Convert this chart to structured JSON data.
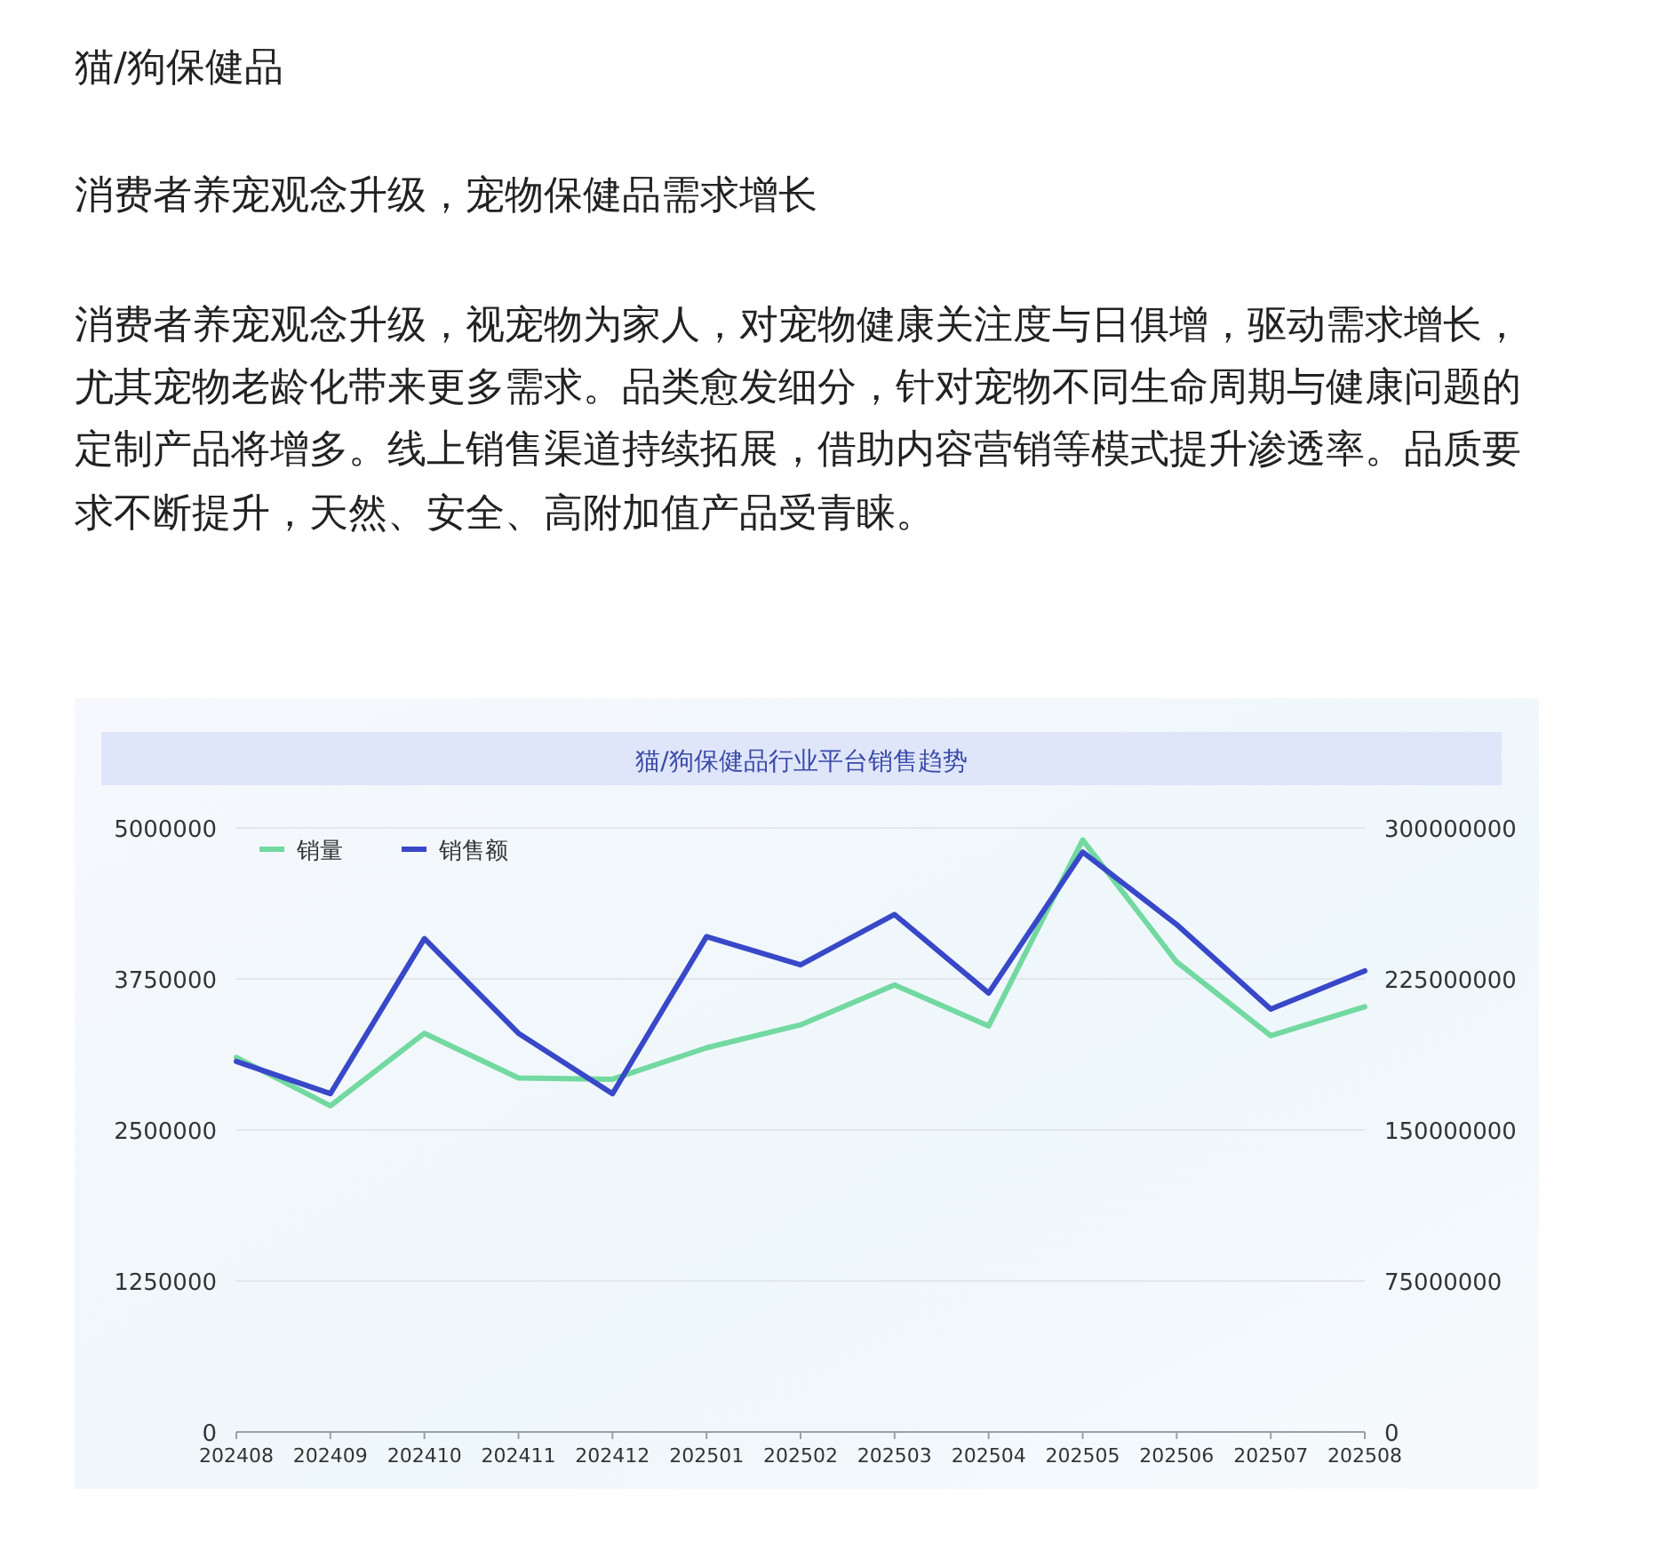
{
  "chart_data": {
    "type": "line",
    "title": "猫/狗保健品",
    "subtitle": "消费者养宠观念升级，宠物保健品需求增长",
    "annotations": [
      "消费者养宠观念升级，视宠物为家人，对宠物健康关注度与日俱增，驱动需求增长，尤其宠物老龄化带来更多需求。品类愈发细分，针对宠物不同生命周期与健康问题的定制产品将增多。线上销售渠道持续拓展，借助内容营销等模式提升渗透率。品质要求不断提升，天然、安全、高附加值产品受青睐。",
      "猫/狗保健品行业平台销售趋势"
    ],
    "categories": [
      "202408",
      "202409",
      "202410",
      "202411",
      "202412",
      "202501",
      "202502",
      "202503",
      "202504",
      "202505",
      "202506",
      "202507",
      "202508"
    ],
    "series": [
      {
        "name": "销量",
        "color": "#72d9a0",
        "values": [
          3100000,
          2700000,
          3300000,
          2930000,
          2920000,
          3180000,
          3370000,
          3700000,
          3360000,
          4900000,
          3890000,
          3280000,
          3520000
        ]
      },
      {
        "name": "销售额",
        "color": "#3848c8",
        "axis": "y2",
        "values": [
          184000000,
          168000000,
          245000000,
          198000000,
          168000000,
          246000000,
          232000000,
          257000000,
          218000000,
          288000000,
          252000000,
          210000000,
          229000000
        ]
      }
    ],
    "ylim": [
      0,
      5000000
    ],
    "yticks": [
      0,
      1250000,
      2500000,
      3750000,
      5000000
    ],
    "y2lim": [
      0,
      300000000
    ],
    "y2ticks": [
      0,
      75000000,
      150000000,
      225000000,
      300000000
    ],
    "grid": "y",
    "legend": "top left"
  }
}
